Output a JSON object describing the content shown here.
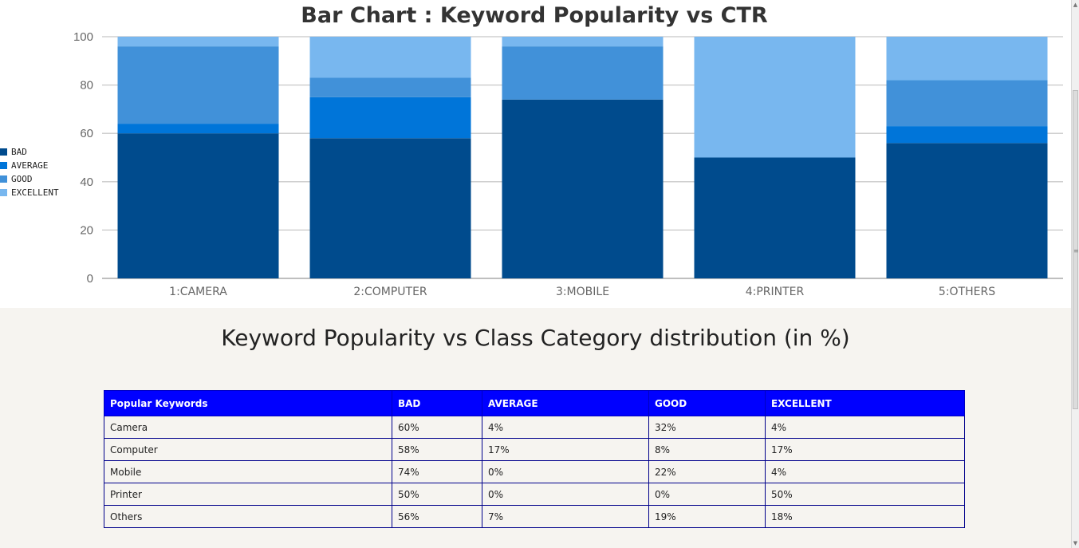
{
  "chart_data": {
    "type": "bar",
    "stacked": true,
    "title": "Bar Chart : Keyword Popularity vs CTR",
    "categories": [
      "1:CAMERA",
      "2:COMPUTER",
      "3:MOBILE",
      "4:PRINTER",
      "5:OTHERS"
    ],
    "series": [
      {
        "name": "BAD",
        "color": "#004b8d",
        "values": [
          60,
          58,
          74,
          50,
          56
        ]
      },
      {
        "name": "AVERAGE",
        "color": "#0075d9",
        "values": [
          4,
          17,
          0,
          0,
          7
        ]
      },
      {
        "name": "GOOD",
        "color": "#4191d9",
        "values": [
          32,
          8,
          22,
          0,
          19
        ]
      },
      {
        "name": "EXCELLENT",
        "color": "#78b7ef",
        "values": [
          4,
          17,
          4,
          50,
          18
        ]
      }
    ],
    "ylim": [
      0,
      100
    ],
    "yticks": [
      0,
      20,
      40,
      60,
      80,
      100
    ],
    "grid": true,
    "legend_position": "left"
  },
  "table": {
    "heading": "Keyword Popularity vs Class Category distribution (in %)",
    "headers": [
      "Popular Keywords",
      "BAD",
      "AVERAGE",
      "GOOD",
      "EXCELLENT"
    ],
    "header_color": "#0000ff",
    "rows": [
      [
        "Camera",
        "60%",
        "4%",
        "32%",
        "4%"
      ],
      [
        "Computer",
        "58%",
        "17%",
        "8%",
        "17%"
      ],
      [
        "Mobile",
        "74%",
        "0%",
        "22%",
        "4%"
      ],
      [
        "Printer",
        "50%",
        "0%",
        "0%",
        "50%"
      ],
      [
        "Others",
        "56%",
        "7%",
        "19%",
        "18%"
      ]
    ]
  },
  "icons": {
    "scroll_up": "arrow-up-icon",
    "scroll_down": "arrow-down-icon"
  }
}
